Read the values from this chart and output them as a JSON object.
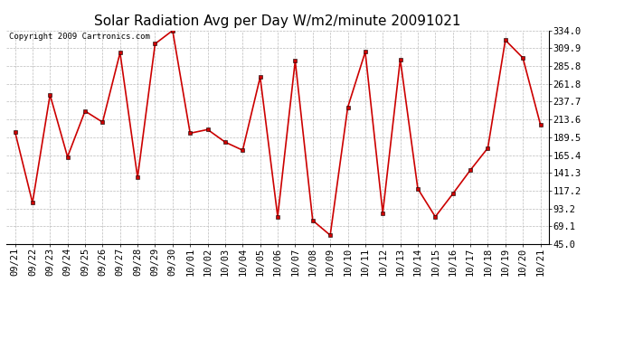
{
  "title": "Solar Radiation Avg per Day W/m2/minute 20091021",
  "copyright_text": "Copyright 2009 Cartronics.com",
  "x_labels": [
    "09/21",
    "09/22",
    "09/23",
    "09/24",
    "09/25",
    "09/26",
    "09/27",
    "09/28",
    "09/29",
    "09/30",
    "10/01",
    "10/02",
    "10/03",
    "10/04",
    "10/05",
    "10/06",
    "10/07",
    "10/08",
    "10/09",
    "10/10",
    "10/11",
    "10/12",
    "10/13",
    "10/14",
    "10/15",
    "10/16",
    "10/17",
    "10/18",
    "10/19",
    "10/20",
    "10/21"
  ],
  "values": [
    197,
    101,
    247,
    163,
    225,
    210,
    304,
    135,
    316,
    334,
    195,
    200,
    183,
    172,
    271,
    82,
    293,
    77,
    57,
    230,
    305,
    87,
    295,
    120,
    82,
    113,
    145,
    175,
    321,
    297,
    207
  ],
  "y_min": 45.0,
  "y_max": 334.0,
  "y_ticks": [
    45.0,
    69.1,
    93.2,
    117.2,
    141.3,
    165.4,
    189.5,
    213.6,
    237.7,
    261.8,
    285.8,
    309.9,
    334.0
  ],
  "line_color": "#cc0000",
  "bg_color": "#ffffff",
  "grid_color": "#bbbbbb",
  "title_fontsize": 11,
  "tick_fontsize": 7.5,
  "copyright_fontsize": 6.5
}
